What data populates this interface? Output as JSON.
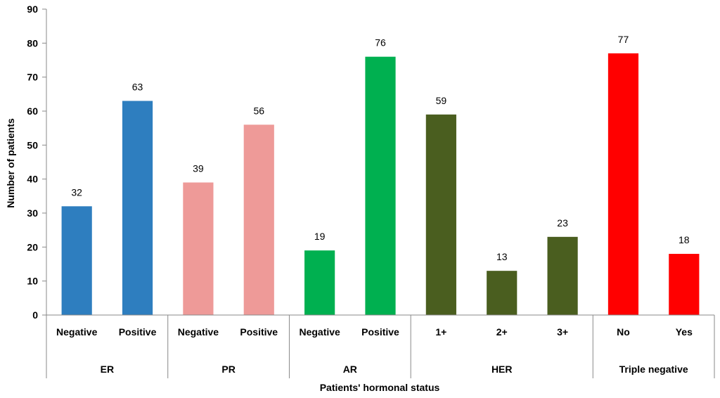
{
  "chart_data": {
    "type": "bar",
    "xlabel": "Patients' hormonal status",
    "ylabel": "Number of patients",
    "ylim": [
      0,
      90
    ],
    "yticks": [
      "0",
      "10",
      "20",
      "30",
      "40",
      "50",
      "60",
      "70",
      "80",
      "90"
    ],
    "grid": false,
    "legend": "none",
    "groups": [
      {
        "name": "ER",
        "color": "#2e7ebf",
        "bars": [
          {
            "category": "Negative",
            "value": 32
          },
          {
            "category": "Positive",
            "value": 63
          }
        ]
      },
      {
        "name": "PR",
        "color": "#ee9a98",
        "bars": [
          {
            "category": "Negative",
            "value": 39
          },
          {
            "category": "Positive",
            "value": 56
          }
        ]
      },
      {
        "name": "AR",
        "color": "#00b050",
        "bars": [
          {
            "category": "Negative",
            "value": 19
          },
          {
            "category": "Positive",
            "value": 76
          }
        ]
      },
      {
        "name": "HER",
        "color": "#4a5e1f",
        "bars": [
          {
            "category": "1+",
            "value": 59
          },
          {
            "category": "2+",
            "value": 13
          },
          {
            "category": "3+",
            "value": 23
          }
        ]
      },
      {
        "name": "Triple negative",
        "color": "#ff0000",
        "bars": [
          {
            "category": "No",
            "value": 77
          },
          {
            "category": "Yes",
            "value": 18
          }
        ]
      }
    ]
  }
}
